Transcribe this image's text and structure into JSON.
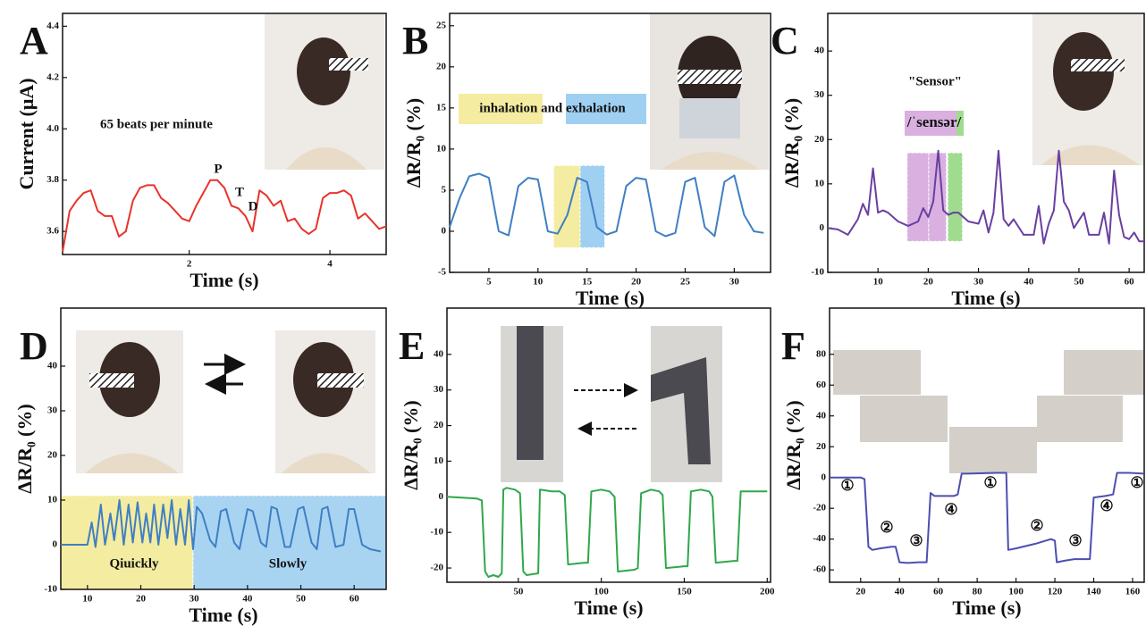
{
  "chart_data": [
    {
      "type": "line",
      "label": "A",
      "x_label": "Time (s)",
      "y_label": "Current (μA)",
      "color": "#e8332a",
      "annotations": [
        "65 beats per minute",
        "P",
        "T",
        "D"
      ],
      "xlim": [
        0.2,
        4.8
      ],
      "ylim": [
        3.51,
        4.45
      ],
      "xticks": [
        2,
        4
      ],
      "yticks": [
        3.6,
        3.8,
        {
          "value": 4,
          "label": "4.0"
        },
        4.2,
        4.4
      ],
      "x": [
        0.2,
        0.3,
        0.4,
        0.5,
        0.6,
        0.7,
        0.8,
        0.9,
        1.0,
        1.1,
        1.2,
        1.3,
        1.4,
        1.5,
        1.6,
        1.7,
        1.8,
        1.9,
        2.0,
        2.1,
        2.2,
        2.3,
        2.4,
        2.5,
        2.6,
        2.7,
        2.8,
        2.9,
        3.0,
        3.1,
        3.2,
        3.3,
        3.4,
        3.5,
        3.6,
        3.7,
        3.8,
        3.9,
        4.0,
        4.1,
        4.2,
        4.3,
        4.4,
        4.5,
        4.6,
        4.7,
        4.8
      ],
      "values": [
        3.52,
        3.68,
        3.72,
        3.75,
        3.76,
        3.68,
        3.66,
        3.66,
        3.58,
        3.6,
        3.72,
        3.77,
        3.78,
        3.78,
        3.73,
        3.71,
        3.68,
        3.65,
        3.64,
        3.7,
        3.75,
        3.8,
        3.8,
        3.77,
        3.7,
        3.69,
        3.66,
        3.6,
        3.76,
        3.74,
        3.7,
        3.72,
        3.64,
        3.65,
        3.61,
        3.59,
        3.61,
        3.73,
        3.75,
        3.75,
        3.76,
        3.74,
        3.65,
        3.67,
        3.64,
        3.61,
        3.62
      ]
    },
    {
      "type": "line",
      "label": "B",
      "x_label": "Time (s)",
      "y_label": "ΔR/R₀ (%)",
      "color": "#3f7fc4",
      "annotations": [
        "inhalation and exhalation"
      ],
      "spans": [
        {
          "x": [
            11.6,
            14.3
          ],
          "y": [
            -2,
            8
          ],
          "color": "#f4eca0"
        },
        {
          "x": [
            14.3,
            16.8
          ],
          "y": [
            -2,
            8
          ],
          "color": "#9fd0f2"
        }
      ],
      "xlim": [
        1,
        33.7
      ],
      "ylim": [
        -5,
        26.5
      ],
      "xticks": [
        5,
        10,
        15,
        20,
        25,
        30
      ],
      "yticks": [
        -5,
        0,
        5,
        10,
        15,
        20,
        25
      ],
      "x": [
        1,
        2,
        3,
        4,
        5,
        6,
        7,
        8,
        9,
        10,
        11,
        12,
        13,
        14,
        15,
        16,
        17,
        18,
        19,
        20,
        21,
        22,
        23,
        24,
        25,
        26,
        27,
        28,
        29,
        30,
        31,
        32,
        33
      ],
      "values": [
        0.5,
        4,
        6.7,
        7,
        6.5,
        0,
        -0.5,
        5.5,
        6.5,
        6.3,
        0,
        -0.3,
        2,
        6.5,
        6,
        0.5,
        -0.4,
        0,
        5.5,
        6.5,
        6.3,
        0,
        -0.6,
        -0.2,
        6,
        6.5,
        0.5,
        -0.6,
        6,
        6.8,
        2,
        0,
        -0.2
      ]
    },
    {
      "type": "line",
      "label": "C",
      "x_label": "Time (s)",
      "y_label": "ΔR/R₀ (%)",
      "color": "#6a3fa0",
      "annotations": [
        "\"Sensor\"",
        "/ˈsensər/"
      ],
      "spans": [
        {
          "x": [
            15.8,
            20.1
          ],
          "y": [
            -3,
            17
          ],
          "color": "#d9b0e0"
        },
        {
          "x": [
            20.1,
            23.6
          ],
          "y": [
            -3,
            17
          ],
          "color": "#d9b0e0"
        },
        {
          "x": [
            23.9,
            26.8
          ],
          "y": [
            -3,
            17
          ],
          "color": "#9fdc8f"
        }
      ],
      "xlim": [
        0,
        63
      ],
      "ylim": [
        -10,
        48.5
      ],
      "xticks": [
        10,
        20,
        30,
        40,
        50,
        60
      ],
      "yticks": [
        -10,
        0,
        10,
        20,
        30,
        40
      ],
      "x": [
        0,
        2,
        4,
        6,
        7,
        8,
        9,
        10,
        11,
        12,
        14,
        16,
        18,
        19,
        20,
        21,
        22,
        23,
        24,
        25,
        26,
        28,
        30,
        31,
        32,
        33,
        34,
        35,
        36,
        37,
        39,
        41,
        42,
        43,
        44,
        45,
        46,
        47,
        48,
        49,
        51,
        52,
        54,
        55,
        56,
        57,
        58,
        59,
        60,
        61,
        62,
        63
      ],
      "values": [
        0,
        -0.3,
        -1.5,
        2,
        5.5,
        3,
        13.5,
        3.5,
        4,
        3.5,
        1.5,
        0.5,
        1.5,
        4.5,
        2.5,
        6,
        17.5,
        4,
        3,
        3.5,
        3.5,
        1.5,
        1,
        4,
        -1,
        3.5,
        17.5,
        2,
        0.5,
        2,
        -1.5,
        -1.5,
        5,
        -3.5,
        1,
        4,
        17.5,
        6,
        4,
        0,
        3.5,
        -1.5,
        -1.5,
        3.5,
        -3.5,
        13,
        3,
        -2,
        -2.5,
        -1,
        -3,
        -3
      ]
    },
    {
      "type": "line",
      "label": "D",
      "x_label": "Time (s)",
      "y_label": "ΔR/R₀ (%)",
      "color": "#3f7fc4",
      "annotations": [
        "Qiuickly",
        "Slowly"
      ],
      "spans": [
        {
          "x": [
            5,
            29.8
          ],
          "y": [
            -10,
            11
          ],
          "color": "#f4eca0"
        },
        {
          "x": [
            29.8,
            66
          ],
          "y": [
            -10,
            11
          ],
          "color": "#a8d4f2"
        }
      ],
      "xlim": [
        5,
        66
      ],
      "ylim": [
        -10,
        53
      ],
      "xticks": [
        10,
        20,
        30,
        40,
        50,
        60
      ],
      "yticks": [
        -10,
        0,
        10,
        20,
        30,
        40
      ],
      "x": [
        5,
        9,
        10,
        10.8,
        11.5,
        12.5,
        13.3,
        14.3,
        15,
        16,
        16.8,
        17.7,
        18.5,
        19.4,
        20.3,
        21,
        21.8,
        22.5,
        23.3,
        24.2,
        25,
        25.8,
        26.6,
        27.4,
        28.3,
        29,
        29.8,
        30.5,
        31.5,
        33,
        34,
        35,
        36,
        37.5,
        38.5,
        40,
        41,
        42.5,
        43.5,
        44.5,
        45.5,
        47,
        48,
        49.5,
        50.5,
        52,
        53,
        54,
        55,
        56.5,
        58,
        59,
        60,
        61.5,
        63,
        65
      ],
      "values": [
        0,
        0,
        0,
        5,
        -0.5,
        9,
        0,
        7,
        1,
        10,
        0,
        9,
        0.5,
        9.5,
        0.5,
        7,
        0.5,
        9,
        0,
        9,
        1.5,
        10,
        0,
        8,
        0,
        10,
        -1,
        8.5,
        7,
        1,
        -0.5,
        7.5,
        8,
        0.5,
        -1,
        8,
        7.5,
        0.5,
        -0.5,
        8.5,
        8,
        -0.5,
        -0.5,
        8,
        8.5,
        0.5,
        -1,
        8,
        8.5,
        -0.5,
        0,
        8,
        8,
        0,
        -1,
        -1.5
      ]
    },
    {
      "type": "line",
      "label": "E",
      "x_label": "Time (s)",
      "y_label": "ΔR/R₀ (%)",
      "color": "#2ea84a",
      "xlim": [
        7,
        202
      ],
      "ylim": [
        -24,
        53
      ],
      "xticks": [
        50,
        100,
        150,
        200
      ],
      "yticks": [
        -20,
        -10,
        0,
        10,
        20,
        30,
        40
      ],
      "x": [
        7,
        25,
        28,
        30,
        32,
        35,
        38,
        40,
        41,
        43,
        48,
        51,
        53,
        55,
        62,
        63,
        70,
        75,
        78,
        80,
        90,
        92,
        94,
        100,
        105,
        108,
        110,
        120,
        122,
        124,
        130,
        135,
        137,
        139,
        150,
        152,
        154,
        160,
        165,
        167,
        169,
        180,
        182,
        184,
        190,
        200
      ],
      "values": [
        0,
        -0.5,
        -1,
        -21,
        -22.5,
        -22,
        -22.5,
        -21.5,
        2,
        2.5,
        2,
        1,
        -21,
        -22,
        -21.5,
        2,
        1.5,
        1.5,
        0.5,
        -19,
        -18.5,
        -18.5,
        1.5,
        2,
        1.5,
        0,
        -21,
        -20.5,
        -20,
        1,
        2,
        1.5,
        0.5,
        -20,
        -19.5,
        -19.5,
        1.5,
        2,
        1.5,
        0,
        -18.5,
        -18,
        -18,
        1.5,
        1.5,
        1.5
      ]
    },
    {
      "type": "line",
      "label": "F",
      "x_label": "Time (s)",
      "y_label": "ΔR/R₀ (%)",
      "color": "#4b4fb0",
      "annotations": [
        "①",
        "②",
        "③",
        "④",
        "①",
        "②",
        "③",
        "④",
        "①"
      ],
      "xlim": [
        4,
        166
      ],
      "ylim": [
        -68,
        110
      ],
      "xticks": [
        20,
        40,
        60,
        80,
        100,
        120,
        140,
        160
      ],
      "yticks": [
        -60,
        -40,
        -20,
        0,
        20,
        40,
        60,
        80
      ],
      "x": [
        4,
        20,
        22,
        24,
        26,
        30,
        36,
        38,
        40,
        44,
        50,
        54,
        56,
        58,
        62,
        68,
        70,
        72,
        75,
        90,
        95,
        96,
        100,
        110,
        118,
        120,
        121,
        125,
        130,
        138,
        140,
        146,
        150,
        152,
        158,
        166
      ],
      "values": [
        0,
        0,
        -1,
        -45,
        -47,
        -46,
        -45,
        -45,
        -55,
        -55.5,
        -55,
        -55,
        -10,
        -12,
        -12,
        -12,
        -11,
        2.5,
        2.5,
        3,
        3,
        -47,
        -46,
        -43,
        -40,
        -41,
        -55,
        -54,
        -53,
        -53,
        -13,
        -12,
        -11,
        3,
        3,
        2.5
      ]
    }
  ]
}
